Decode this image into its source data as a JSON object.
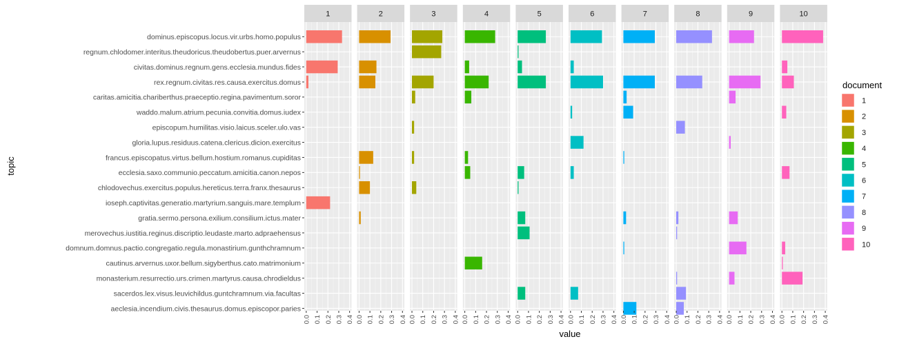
{
  "chart_data": {
    "type": "bar",
    "orientation": "horizontal",
    "facet_by": "document",
    "x_label": "value",
    "y_label": "topic",
    "legend_title": "document",
    "xlim": [
      0,
      0.4
    ],
    "x_ticks": [
      "0.0",
      "0.1",
      "0.2",
      "0.3",
      "0.4"
    ],
    "topics": [
      "dominus.episcopus.locus.vir.urbs.homo.populus",
      "regnum.chlodomer.interitus.theudoricus.theudobertus.puer.arvernus",
      "civitas.dominus.regnum.gens.ecclesia.mundus.fides",
      "rex.regnum.civitas.res.causa.exercitus.domus",
      "caritas.amicitia.chariberthus.praeceptio.regina.pavimentum.soror",
      "waddo.malum.atrium.pecunia.convitia.domus.iudex",
      "episcopum.humilitas.visio.laicus.sceler.ulo.vas",
      "gloria.lupus.residuus.catena.clericus.dicion.exercitus",
      "francus.episcopatus.virtus.bellum.hostium.romanus.cupiditas",
      "ecclesia.saxo.communio.peccatum.amicitia.canon.nepos",
      "chlodovechus.exercitus.populus.hereticus.terra.franx.thesaurus",
      "ioseph.captivitas.generatio.martyrium.sanguis.mare.templum",
      "gratia.sermo.persona.exilium.consilium.ictus.mater",
      "merovechus.iustitia.reginus.discriptio.leudaste.marto.adpraehensus",
      "domnum.domnus.pactio.congregatio.regula.monastirium.gunthchramnum",
      "cautinus.arvernus.uxor.bellum.sigyberthus.cato.matrimonium",
      "monasterium.resurrectio.urs.crimen.martyrus.causa.chrodieldus",
      "sacerdos.lex.visus.leuvichildus.guntchramnum.via.facultas",
      "aeclesia.incendium.civis.thesaurus.domus.episcopor.paries"
    ],
    "series": [
      {
        "name": "1",
        "color": "#F8766D",
        "values": [
          0.33,
          0,
          0.29,
          0.02,
          0,
          0,
          0,
          0,
          0,
          0,
          0,
          0.22,
          0,
          0,
          0,
          0,
          0,
          0,
          0
        ]
      },
      {
        "name": "2",
        "color": "#D89000",
        "values": [
          0.29,
          0,
          0.16,
          0.15,
          0,
          0,
          0,
          0,
          0.13,
          0.008,
          0.1,
          0,
          0.015,
          0,
          0,
          0,
          0,
          0,
          0
        ]
      },
      {
        "name": "3",
        "color": "#A3A500",
        "values": [
          0.28,
          0.27,
          0,
          0.2,
          0.03,
          0,
          0.02,
          0,
          0.02,
          0,
          0.04,
          0,
          0,
          0,
          0,
          0,
          0,
          0,
          0
        ]
      },
      {
        "name": "4",
        "color": "#39B600",
        "values": [
          0.28,
          0,
          0.04,
          0.22,
          0.06,
          0,
          0,
          0,
          0.03,
          0.05,
          0,
          0,
          0,
          0,
          0,
          0.16,
          0,
          0,
          0
        ]
      },
      {
        "name": "5",
        "color": "#00BF7D",
        "values": [
          0.26,
          0.008,
          0.04,
          0.26,
          0,
          0,
          0,
          0,
          0,
          0.06,
          0.008,
          0,
          0.07,
          0.11,
          0,
          0,
          0,
          0.07,
          0
        ]
      },
      {
        "name": "6",
        "color": "#00BFC4",
        "values": [
          0.29,
          0,
          0.03,
          0.3,
          0,
          0.015,
          0,
          0.12,
          0,
          0.03,
          0,
          0,
          0,
          0,
          0,
          0,
          0,
          0.07,
          0
        ]
      },
      {
        "name": "7",
        "color": "#00B0F6",
        "values": [
          0.29,
          0,
          0,
          0.29,
          0.03,
          0.09,
          0,
          0,
          0.008,
          0,
          0,
          0,
          0.025,
          0,
          0.008,
          0,
          0,
          0,
          0.12
        ]
      },
      {
        "name": "8",
        "color": "#9590FF",
        "values": [
          0.33,
          0,
          0,
          0.24,
          0,
          0,
          0.08,
          0,
          0,
          0,
          0,
          0,
          0.02,
          0.008,
          0,
          0,
          0.008,
          0.09,
          0.07
        ]
      },
      {
        "name": "9",
        "color": "#E76BF3",
        "values": [
          0.23,
          0,
          0,
          0.29,
          0.06,
          0,
          0,
          0.015,
          0,
          0,
          0,
          0,
          0.08,
          0,
          0.16,
          0,
          0.05,
          0,
          0
        ]
      },
      {
        "name": "10",
        "color": "#FF62BC",
        "values": [
          0.38,
          0,
          0.05,
          0.11,
          0,
          0.04,
          0,
          0,
          0,
          0.07,
          0,
          0,
          0,
          0,
          0.03,
          0.008,
          0.19,
          0,
          0
        ]
      }
    ]
  }
}
